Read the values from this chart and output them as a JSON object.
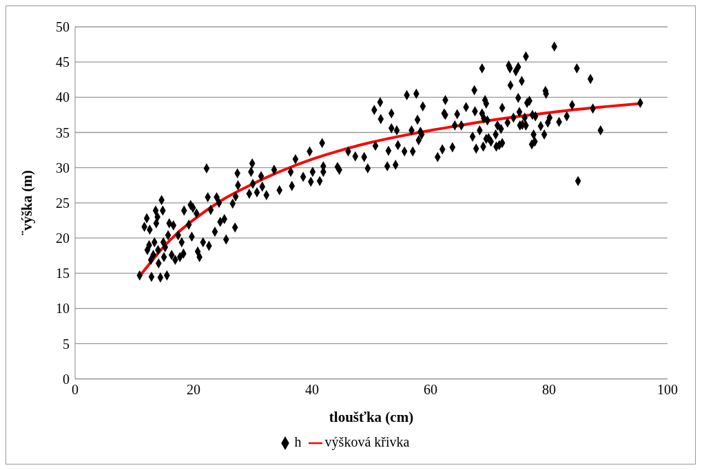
{
  "chart_data": {
    "type": "scatter",
    "xlabel": "tloušťka (cm)",
    "ylabel": "¨výška (m)",
    "xlim": [
      0,
      100
    ],
    "xticks": [
      0,
      20,
      40,
      60,
      80,
      100
    ],
    "ylim": [
      0,
      50
    ],
    "yticks": [
      0,
      5,
      10,
      15,
      20,
      25,
      30,
      35,
      40,
      45,
      50
    ],
    "grid": "y",
    "legend": "bottom",
    "series": [
      {
        "name": "h",
        "color": "#000000",
        "marker": "diamond",
        "x": [
          10.9,
          11.7,
          12.1,
          12.2,
          12.6,
          12.5,
          12.8,
          12.9,
          13.2,
          13.4,
          13.6,
          13.7,
          13.9,
          14.0,
          14.1,
          14.4,
          14.6,
          14.8,
          14.9,
          15.0,
          15.2,
          15.5,
          15.7,
          15.9,
          16.3,
          16.6,
          16.9,
          17.4,
          17.7,
          18.0,
          18.3,
          18.4,
          19.2,
          19.5,
          19.7,
          19.9,
          20.5,
          20.7,
          21.0,
          21.6,
          22.2,
          22.4,
          22.6,
          22.9,
          23.6,
          23.9,
          24.3,
          24.5,
          25.2,
          25.5,
          26.6,
          27.0,
          27.1,
          27.4,
          27.5,
          29.4,
          29.7,
          29.9,
          30.0,
          30.7,
          31.4,
          31.6,
          32.3,
          33.6,
          34.5,
          36.4,
          36.6,
          37.2,
          38.5,
          39.6,
          39.8,
          40.1,
          41.3,
          41.7,
          41.9,
          41.9,
          44.3,
          44.6,
          46.1,
          47.3,
          48.8,
          49.4,
          50.5,
          50.7,
          51.5,
          51.6,
          52.7,
          52.9,
          53.4,
          53.4,
          54.1,
          54.3,
          54.5,
          55.6,
          56.0,
          56.8,
          57.0,
          57.6,
          57.8,
          58.0,
          58.3,
          58.5,
          58.7,
          61.2,
          62.0,
          62.3,
          62.5,
          62.5,
          63.7,
          64.1,
          64.5,
          65.2,
          66.0,
          67.1,
          67.4,
          67.5,
          67.7,
          68.3,
          68.7,
          68.7,
          68.9,
          69.0,
          69.2,
          69.4,
          69.4,
          69.6,
          69.8,
          70.2,
          71.0,
          71.1,
          71.3,
          71.6,
          71.9,
          72.1,
          72.1,
          73.0,
          73.2,
          73.4,
          73.5,
          74.0,
          74.4,
          74.8,
          74.8,
          75.0,
          75.1,
          75.4,
          75.5,
          75.9,
          76.1,
          76.1,
          76.3,
          76.7,
          77.1,
          77.2,
          77.4,
          77.6,
          77.7,
          78.6,
          79.2,
          79.4,
          79.5,
          79.8,
          80.1,
          80.9,
          81.7,
          83.0,
          83.9,
          84.7,
          84.9,
          87.0,
          87.4,
          88.7,
          95.4
        ],
        "values": [
          14.7,
          21.6,
          22.8,
          18.3,
          21.2,
          19.0,
          16.9,
          14.5,
          17.6,
          19.4,
          23.9,
          22.1,
          23.0,
          18.3,
          16.4,
          14.4,
          25.4,
          23.9,
          19.4,
          17.3,
          18.7,
          14.7,
          20.4,
          22.1,
          17.6,
          21.8,
          16.9,
          20.4,
          17.3,
          19.4,
          17.8,
          23.9,
          21.9,
          24.7,
          20.2,
          24.3,
          23.5,
          18.1,
          17.3,
          19.4,
          29.9,
          25.8,
          18.9,
          24.0,
          20.9,
          25.8,
          25.0,
          22.3,
          22.7,
          19.8,
          24.9,
          21.5,
          25.9,
          29.2,
          27.5,
          26.3,
          29.4,
          30.6,
          27.7,
          26.5,
          28.8,
          27.3,
          26.1,
          29.7,
          26.8,
          29.4,
          27.4,
          31.2,
          28.7,
          32.3,
          28.0,
          29.4,
          28.1,
          33.5,
          30.2,
          29.4,
          30.1,
          29.7,
          32.3,
          31.6,
          31.5,
          29.9,
          38.2,
          33.1,
          39.3,
          36.9,
          30.2,
          32.4,
          37.7,
          35.6,
          30.4,
          35.3,
          33.2,
          32.3,
          40.3,
          35.3,
          32.3,
          40.5,
          36.8,
          33.9,
          35.1,
          34.7,
          38.7,
          31.5,
          32.6,
          37.7,
          39.6,
          37.5,
          32.9,
          36.0,
          37.6,
          36.0,
          38.6,
          34.4,
          41.0,
          38.0,
          32.7,
          35.3,
          44.1,
          37.7,
          33.0,
          37.0,
          39.6,
          34.1,
          39.1,
          36.7,
          34.2,
          33.7,
          34.7,
          33.0,
          36.0,
          33.2,
          35.5,
          38.5,
          33.5,
          36.4,
          44.5,
          44.1,
          41.7,
          37.1,
          43.7,
          44.3,
          39.9,
          37.9,
          36.0,
          42.3,
          36.1,
          37.1,
          45.8,
          36.0,
          39.2,
          39.5,
          33.3,
          37.5,
          34.7,
          33.7,
          37.3,
          35.9,
          34.7,
          40.9,
          40.5,
          36.4,
          37.1,
          47.2,
          36.5,
          37.3,
          38.9,
          44.1,
          28.1,
          42.6,
          38.4,
          35.3,
          39.2
        ]
      },
      {
        "name": "výšková křivka",
        "type": "line",
        "color": "#ff0000",
        "marker": "none",
        "x": [
          11,
          13,
          15,
          17,
          20,
          25,
          30,
          35,
          40,
          45,
          50,
          55,
          60,
          65,
          70,
          75,
          80,
          85,
          90,
          95.4
        ],
        "values": [
          14.7,
          16.8,
          18.8,
          20.5,
          22.6,
          25.5,
          27.7,
          29.6,
          31.2,
          32.5,
          33.6,
          34.5,
          35.3,
          36.0,
          36.7,
          37.3,
          37.8,
          38.3,
          38.7,
          39.1
        ]
      }
    ]
  }
}
